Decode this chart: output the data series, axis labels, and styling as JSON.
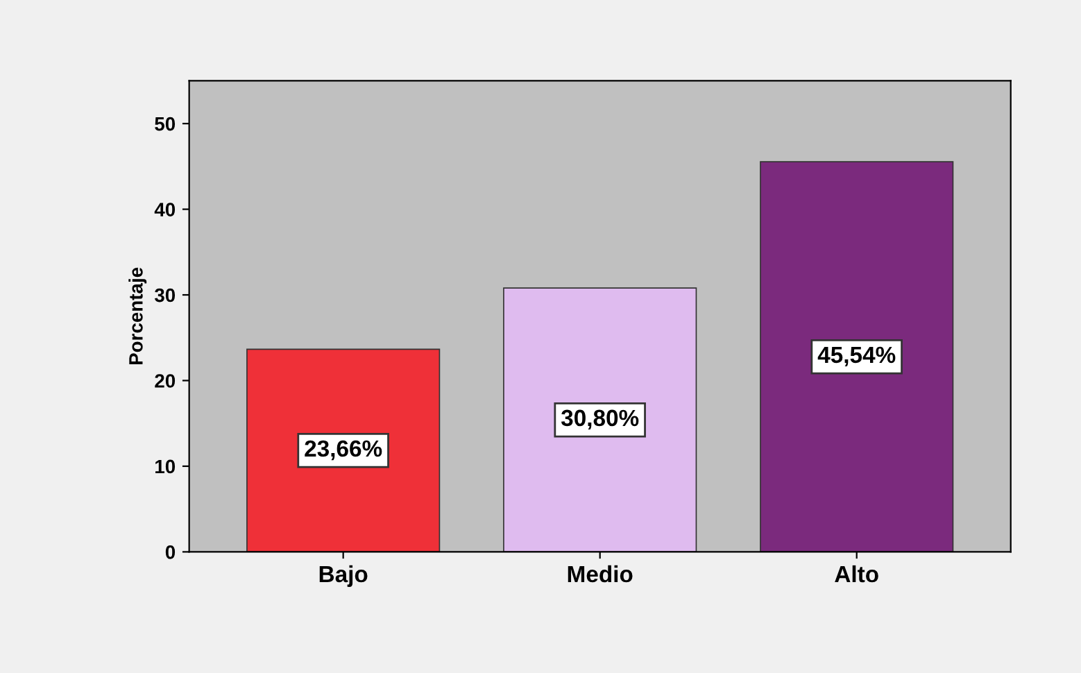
{
  "chart_data": {
    "type": "bar",
    "ylabel": "Porcentaje",
    "categories": [
      "Bajo",
      "Medio",
      "Alto"
    ],
    "values": [
      23.66,
      30.8,
      45.54
    ],
    "colors": [
      "#ef3038",
      "#dfbbef",
      "#7b2a7d"
    ],
    "value_labels": [
      "23,66%",
      "30,80%",
      "45,54%"
    ],
    "ylim": [
      0,
      55
    ],
    "yticks": [
      0,
      10,
      20,
      30,
      40,
      50
    ],
    "grid": false,
    "legend": false
  }
}
